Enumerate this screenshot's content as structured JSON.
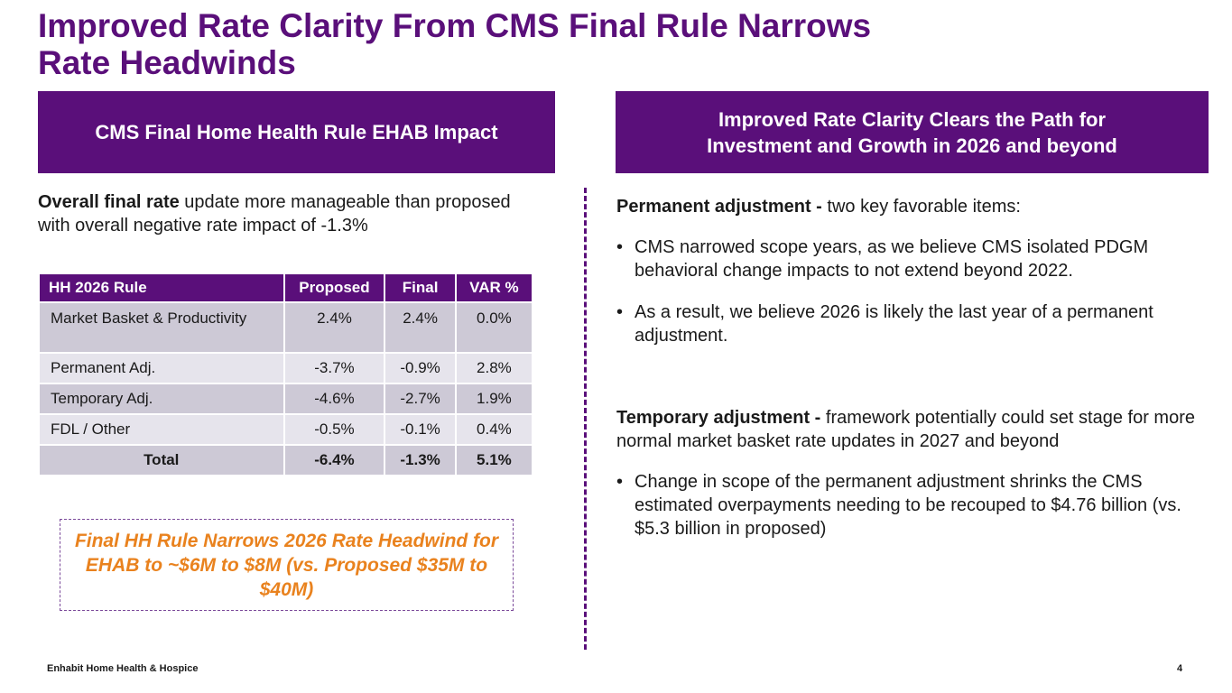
{
  "title_line1": "Improved Rate Clarity From CMS Final Rule Narrows",
  "title_line2": "Rate Headwinds",
  "left_header": "CMS Final Home Health Rule EHAB Impact",
  "right_header_line1": "Improved Rate Clarity Clears the Path for",
  "right_header_line2": "Investment and Growth in 2026 and beyond",
  "intro": {
    "bold": "Overall final rate",
    "rest": " update more manageable than proposed with overall negative rate impact of -1.3%"
  },
  "table": {
    "headers": [
      "HH 2026 Rule",
      "Proposed",
      "Final",
      "VAR %"
    ],
    "rows": [
      [
        "Market Basket & Productivity",
        "2.4%",
        "2.4%",
        "0.0%"
      ],
      [
        "Permanent Adj.",
        "-3.7%",
        "-0.9%",
        "2.8%"
      ],
      [
        "Temporary Adj.",
        "-4.6%",
        "-2.7%",
        "1.9%"
      ],
      [
        "FDL / Other",
        "-0.5%",
        "-0.1%",
        "0.4%"
      ],
      [
        "Total",
        "-6.4%",
        "-1.3%",
        "5.1%"
      ]
    ]
  },
  "callout": "Final HH Rule Narrows 2026 Rate Headwind for EHAB to ~$6M to $8M (vs. Proposed $35M to $40M)",
  "permanent": {
    "bold": "Permanent adjustment -",
    "rest": " two key favorable items:",
    "bullets": [
      "CMS narrowed scope years, as we believe CMS isolated PDGM behavioral change impacts to not extend beyond 2022.",
      "As a result, we believe 2026 is likely the last year of a permanent adjustment."
    ]
  },
  "temporary": {
    "bold": "Temporary adjustment -",
    "rest": " framework potentially could set stage for more normal market basket rate updates in 2027 and beyond",
    "bullets": [
      "Change in scope of the permanent adjustment shrinks the CMS estimated overpayments needing to be recouped to $4.76 billion (vs. $5.3 billion in proposed)"
    ]
  },
  "bullet_glyph": "•",
  "footer_company": "Enhabit Home Health & Hospice",
  "page_number": "4"
}
